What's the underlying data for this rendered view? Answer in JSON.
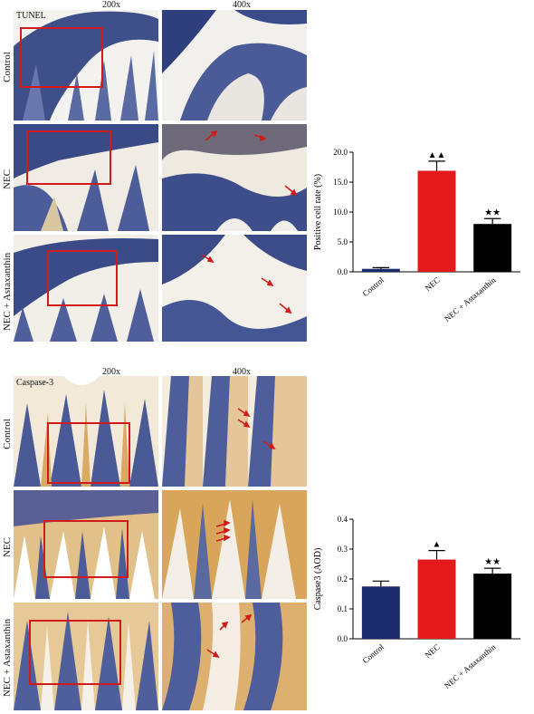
{
  "sections": [
    {
      "stain": "TUNEL",
      "mag_low": "200x",
      "mag_high": "400x",
      "rows": [
        "Control",
        "NEC",
        "NEC + Astaxanthin"
      ]
    },
    {
      "stain": "Caspase-3",
      "mag_low": "200x",
      "mag_high": "400x",
      "rows": [
        "Control",
        "NEC",
        "NEC + Astaxanthin"
      ]
    }
  ],
  "chart_data": [
    {
      "type": "bar",
      "categories": [
        "Control",
        "NEC",
        "NEC + Astaxanthin"
      ],
      "values": [
        0.5,
        16.9,
        8.0
      ],
      "errors": [
        0.2,
        1.6,
        0.9
      ],
      "significance": [
        "",
        "▲▲",
        "★★"
      ],
      "ylabel": "Positive cell rate (%)",
      "ylim": [
        0,
        20
      ],
      "yticks": [
        "0.0",
        "5.0",
        "10.0",
        "15.0",
        "20.0"
      ],
      "colors": [
        "#1b2a6b",
        "#e3191c",
        "#000000"
      ]
    },
    {
      "type": "bar",
      "categories": [
        "Control",
        "NEC",
        "NEC + Astaxanthin"
      ],
      "values": [
        0.175,
        0.265,
        0.218
      ],
      "errors": [
        0.018,
        0.03,
        0.018
      ],
      "significance": [
        "",
        "▲",
        "★★"
      ],
      "ylabel": "Caspase3 (AOD)",
      "ylim": [
        0,
        0.4
      ],
      "yticks": [
        "0.0",
        "0.1",
        "0.2",
        "0.3",
        "0.4"
      ],
      "colors": [
        "#1b2a6b",
        "#e3191c",
        "#000000"
      ]
    }
  ]
}
